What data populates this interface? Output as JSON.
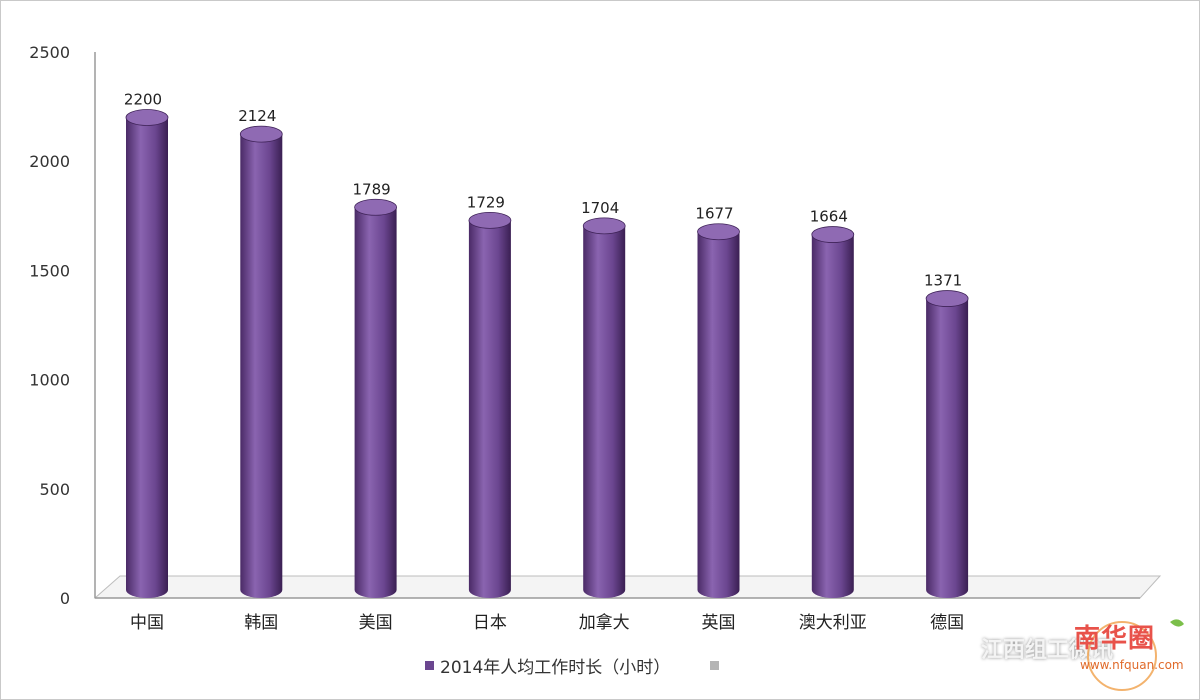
{
  "chart_data": {
    "type": "bar",
    "categories": [
      "中国",
      "韩国",
      "美国",
      "日本",
      "加拿大",
      "英国",
      "澳大利亚",
      "德国"
    ],
    "series": [
      {
        "name": "2014年人均工作时长（小时）",
        "values": [
          2200,
          2124,
          1789,
          1729,
          1704,
          1677,
          1664,
          1371
        ]
      }
    ],
    "yticks": [
      "0",
      "500",
      "1000",
      "1500",
      "2000",
      "2500"
    ],
    "ylim": [
      0,
      2500
    ],
    "grid": false,
    "legend_position": "bottom",
    "style": "3d-cylinder",
    "colors": {
      "bar": "#6b4690",
      "bar_dark": "#3f2358",
      "bar_light": "#8f6ab3",
      "floor": "#d8d8d8"
    }
  },
  "watermark": {
    "account": "江西组工微讯",
    "icon": "wechat-icon",
    "site_name": "南华圈",
    "site_url": "www.nfquan.com"
  }
}
